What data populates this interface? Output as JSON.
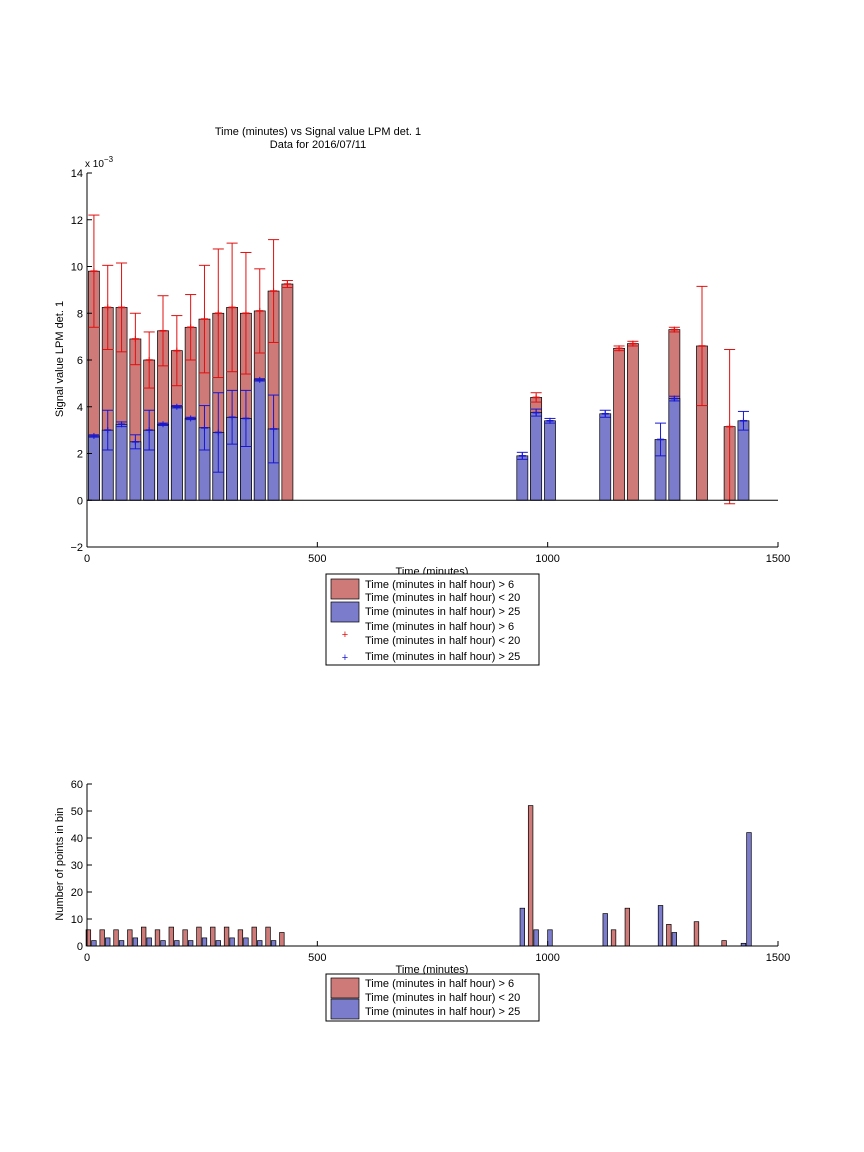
{
  "figure": {
    "title_line1": "Time (minutes) vs Signal value LPM det. 1",
    "title_line2": "Data for 2016/07/11"
  },
  "colors": {
    "red_bar": "#cd7a78",
    "blue_bar": "#7c7ccd",
    "red_err": "#e01010",
    "blue_err": "#1818d0",
    "axis": "#000000"
  },
  "chart_data": [
    {
      "type": "bar",
      "title": "Time (minutes) vs Signal value LPM det. 1",
      "subtitle": "Data for 2016/07/11",
      "xlabel": "Time (minutes)",
      "ylabel": "Signal value LPM det. 1",
      "y_exponent_label": "x 10",
      "y_exponent_power": "−3",
      "xlim": [
        0,
        1500
      ],
      "ylim": [
        -2,
        14
      ],
      "xticks": [
        0,
        500,
        1000,
        1500
      ],
      "yticks": [
        -2,
        0,
        2,
        4,
        6,
        8,
        10,
        12,
        14
      ],
      "grid": false,
      "legend_position": "below",
      "legend": [
        "Time (minutes in half hour) > 6",
        "Time (minutes in half hour) < 20",
        "Time (minutes in half hour) > 25",
        "Time (minutes in half hour) > 6",
        "Time (minutes in half hour) < 20",
        "Time (minutes in half hour) > 25"
      ],
      "series": [
        {
          "points": [
            {
              "x": 15,
              "y": 9.8,
              "err": 2.4
            },
            {
              "x": 45,
              "y": 8.25,
              "err": 1.8
            },
            {
              "x": 75,
              "y": 8.25,
              "err": 1.9
            },
            {
              "x": 105,
              "y": 6.9,
              "err": 1.1
            },
            {
              "x": 135,
              "y": 6.0,
              "err": 1.2
            },
            {
              "x": 165,
              "y": 7.25,
              "err": 1.5
            },
            {
              "x": 195,
              "y": 6.4,
              "err": 1.5
            },
            {
              "x": 225,
              "y": 7.4,
              "err": 1.4
            },
            {
              "x": 255,
              "y": 7.75,
              "err": 2.3
            },
            {
              "x": 285,
              "y": 8.0,
              "err": 2.75
            },
            {
              "x": 315,
              "y": 8.25,
              "err": 2.75
            },
            {
              "x": 345,
              "y": 8.0,
              "err": 2.6
            },
            {
              "x": 375,
              "y": 8.1,
              "err": 1.8
            },
            {
              "x": 405,
              "y": 8.95,
              "err": 2.2
            },
            {
              "x": 435,
              "y": 9.25,
              "err": 0.15
            },
            {
              "x": 975,
              "y": 4.4,
              "err": 0.2
            },
            {
              "x": 1155,
              "y": 6.5,
              "err": 0.1
            },
            {
              "x": 1185,
              "y": 6.7,
              "err": 0.1
            },
            {
              "x": 1275,
              "y": 7.3,
              "err": 0.1
            },
            {
              "x": 1335,
              "y": 6.6,
              "err": 2.55
            },
            {
              "x": 1395,
              "y": 3.15,
              "err": 3.3
            }
          ]
        },
        {
          "points": [
            {
              "x": 15,
              "y": 2.75,
              "err": 0.05
            },
            {
              "x": 45,
              "y": 3.0,
              "err": 0.85
            },
            {
              "x": 75,
              "y": 3.25,
              "err": 0.1
            },
            {
              "x": 105,
              "y": 2.5,
              "err": 0.3
            },
            {
              "x": 135,
              "y": 3.0,
              "err": 0.85
            },
            {
              "x": 165,
              "y": 3.25,
              "err": 0.05
            },
            {
              "x": 195,
              "y": 4.0,
              "err": 0.05
            },
            {
              "x": 225,
              "y": 3.5,
              "err": 0.05
            },
            {
              "x": 255,
              "y": 3.1,
              "err": 0.95
            },
            {
              "x": 285,
              "y": 2.9,
              "err": 1.7
            },
            {
              "x": 315,
              "y": 3.55,
              "err": 1.15
            },
            {
              "x": 345,
              "y": 3.5,
              "err": 1.2
            },
            {
              "x": 375,
              "y": 5.15,
              "err": 0.05
            },
            {
              "x": 405,
              "y": 3.05,
              "err": 1.45
            },
            {
              "x": 945,
              "y": 1.9,
              "err": 0.15
            },
            {
              "x": 975,
              "y": 3.75,
              "err": 0.15
            },
            {
              "x": 1005,
              "y": 3.4,
              "err": 0.1
            },
            {
              "x": 1125,
              "y": 3.7,
              "err": 0.15
            },
            {
              "x": 1245,
              "y": 2.6,
              "err": 0.7
            },
            {
              "x": 1275,
              "y": 4.35,
              "err": 0.1
            },
            {
              "x": 1425,
              "y": 3.4,
              "err": 0.4
            }
          ]
        }
      ]
    },
    {
      "type": "bar",
      "title": "",
      "xlabel": "Time (minutes)",
      "ylabel": "Number of points in bin",
      "xlim": [
        0,
        1500
      ],
      "ylim": [
        0,
        60
      ],
      "xticks": [
        0,
        500,
        1000,
        1500
      ],
      "yticks": [
        0,
        10,
        20,
        30,
        40,
        50,
        60
      ],
      "grid": false,
      "legend_position": "below",
      "legend": [
        "Time (minutes in half hour) > 6",
        "Time (minutes in half hour) < 20",
        "Time (minutes in half hour) > 25"
      ],
      "series": [
        {
          "points": [
            {
              "x": 3,
              "y": 6
            },
            {
              "x": 33,
              "y": 6
            },
            {
              "x": 63,
              "y": 6
            },
            {
              "x": 93,
              "y": 6
            },
            {
              "x": 123,
              "y": 7
            },
            {
              "x": 153,
              "y": 6
            },
            {
              "x": 183,
              "y": 7
            },
            {
              "x": 213,
              "y": 6
            },
            {
              "x": 243,
              "y": 7
            },
            {
              "x": 273,
              "y": 7
            },
            {
              "x": 303,
              "y": 7
            },
            {
              "x": 333,
              "y": 6
            },
            {
              "x": 363,
              "y": 7
            },
            {
              "x": 393,
              "y": 7
            },
            {
              "x": 423,
              "y": 5
            },
            {
              "x": 963,
              "y": 52
            },
            {
              "x": 1143,
              "y": 6
            },
            {
              "x": 1173,
              "y": 14
            },
            {
              "x": 1263,
              "y": 8
            },
            {
              "x": 1323,
              "y": 9
            },
            {
              "x": 1383,
              "y": 2
            }
          ]
        },
        {
          "points": [
            {
              "x": 15,
              "y": 2
            },
            {
              "x": 45,
              "y": 3
            },
            {
              "x": 75,
              "y": 2
            },
            {
              "x": 105,
              "y": 3
            },
            {
              "x": 135,
              "y": 3
            },
            {
              "x": 165,
              "y": 2
            },
            {
              "x": 195,
              "y": 2
            },
            {
              "x": 225,
              "y": 2
            },
            {
              "x": 255,
              "y": 3
            },
            {
              "x": 285,
              "y": 2
            },
            {
              "x": 315,
              "y": 3
            },
            {
              "x": 345,
              "y": 3
            },
            {
              "x": 375,
              "y": 2
            },
            {
              "x": 405,
              "y": 2
            },
            {
              "x": 945,
              "y": 14
            },
            {
              "x": 975,
              "y": 6
            },
            {
              "x": 1005,
              "y": 6
            },
            {
              "x": 1125,
              "y": 12
            },
            {
              "x": 1245,
              "y": 15
            },
            {
              "x": 1275,
              "y": 5
            },
            {
              "x": 1425,
              "y": 1
            },
            {
              "x": 1437,
              "y": 42
            }
          ]
        }
      ]
    }
  ]
}
